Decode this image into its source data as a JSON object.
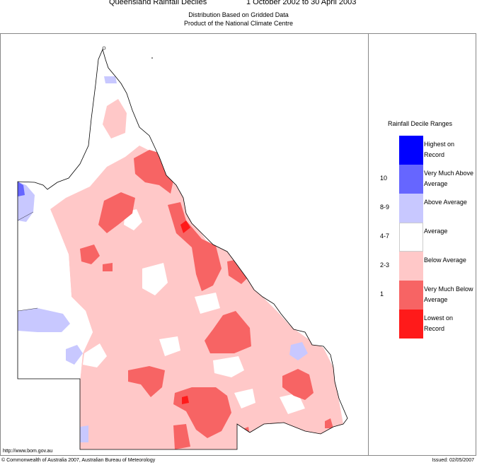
{
  "header": {
    "title": "Queensland Rainfall Deciles",
    "period": "1 October 2002 to 30 April 2003",
    "subtitle_1": "Distribution Based on Gridded Data",
    "subtitle_2": "Product of the National Climate Centre"
  },
  "footer": {
    "url": "http://www.bom.gov.au",
    "copyright": "© Commonwealth of Australia 2007, Australian Bureau of Meteorology",
    "issued": "Issued: 02/05/2007"
  },
  "legend": {
    "title": "Rainfall Decile Ranges",
    "items": [
      {
        "label": "Highest on Record",
        "decile": "",
        "color": "#0000ff"
      },
      {
        "label": "Very Much Above Average",
        "decile": "10",
        "color": "#6666ff"
      },
      {
        "label": "Above Average",
        "decile": "8-9",
        "color": "#c8c8ff"
      },
      {
        "label": "Average",
        "decile": "4-7",
        "color": "#ffffff"
      },
      {
        "label": "Below Average",
        "decile": "2-3",
        "color": "#ffc8c8"
      },
      {
        "label": "Very Much Below Average",
        "decile": "1",
        "color": "#f76464"
      },
      {
        "label": "Lowest on Record",
        "decile": "",
        "color": "#ff1a1a"
      }
    ]
  }
}
